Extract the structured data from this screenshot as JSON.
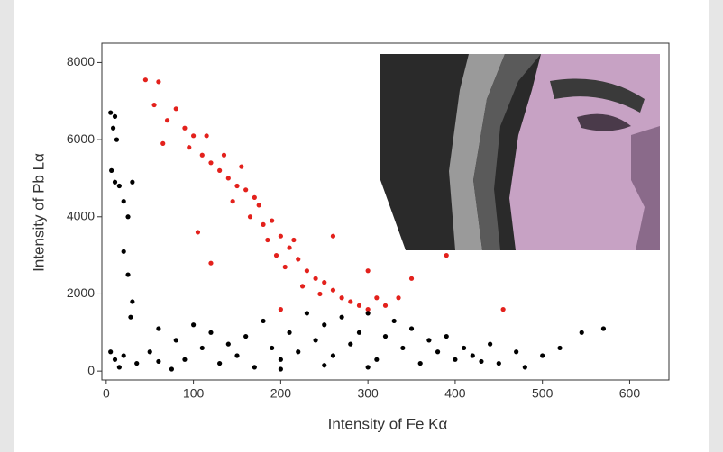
{
  "chart_data": {
    "type": "scatter",
    "x_label": "Intensity of Fe Kα",
    "y_label": "Intensity of Pb Lα",
    "xlim": [
      -5,
      645
    ],
    "ylim": [
      -230,
      8500
    ],
    "xticks": [
      0,
      100,
      200,
      300,
      400,
      500,
      600
    ],
    "yticks": [
      0,
      2000,
      4000,
      6000,
      8000
    ],
    "series": [
      {
        "color": "#e3211c",
        "x": [
          45,
          60,
          55,
          70,
          65,
          80,
          90,
          100,
          95,
          110,
          120,
          115,
          130,
          140,
          135,
          150,
          145,
          160,
          155,
          170,
          165,
          180,
          175,
          190,
          185,
          200,
          195,
          210,
          205,
          220,
          215,
          230,
          225,
          240,
          250,
          245,
          260,
          270,
          280,
          290,
          300,
          310,
          320,
          335,
          350,
          390,
          455,
          105,
          120,
          200,
          260,
          300
        ],
        "values": [
          7550,
          7500,
          6900,
          6500,
          5900,
          6800,
          6300,
          6100,
          5800,
          5600,
          5400,
          6100,
          5200,
          5000,
          5600,
          4800,
          4400,
          4700,
          5300,
          4500,
          4000,
          3800,
          4300,
          3900,
          3400,
          3500,
          3000,
          3200,
          2700,
          2900,
          3400,
          2600,
          2200,
          2400,
          2300,
          2000,
          2100,
          1900,
          1800,
          1700,
          1600,
          1900,
          1700,
          1900,
          2400,
          3000,
          1600,
          3600,
          2800,
          1600,
          3500,
          2600
        ]
      },
      {
        "color": "#000000",
        "x": [
          5,
          10,
          8,
          12,
          6,
          10,
          15,
          20,
          30,
          25,
          20,
          25,
          30,
          28,
          5,
          10,
          20,
          15,
          35,
          50,
          60,
          80,
          90,
          100,
          110,
          120,
          130,
          140,
          150,
          160,
          170,
          180,
          190,
          200,
          210,
          220,
          230,
          240,
          250,
          260,
          270,
          280,
          290,
          300,
          310,
          320,
          330,
          340,
          350,
          360,
          370,
          380,
          390,
          400,
          410,
          420,
          440,
          450,
          470,
          480,
          500,
          520,
          545,
          570,
          75,
          200,
          300,
          430,
          60,
          250
        ],
        "values": [
          6700,
          6600,
          6300,
          6000,
          5200,
          4900,
          4800,
          4400,
          4900,
          4000,
          3100,
          2500,
          1800,
          1400,
          500,
          300,
          400,
          100,
          200,
          500,
          1100,
          800,
          300,
          1200,
          600,
          1000,
          200,
          700,
          400,
          900,
          100,
          1300,
          600,
          300,
          1000,
          500,
          1500,
          800,
          1200,
          400,
          1400,
          700,
          1000,
          1500,
          300,
          900,
          1300,
          600,
          1100,
          200,
          800,
          500,
          900,
          300,
          600,
          400,
          700,
          200,
          500,
          100,
          400,
          600,
          1000,
          1100,
          50,
          50,
          100,
          250,
          250,
          150
        ]
      }
    ]
  }
}
